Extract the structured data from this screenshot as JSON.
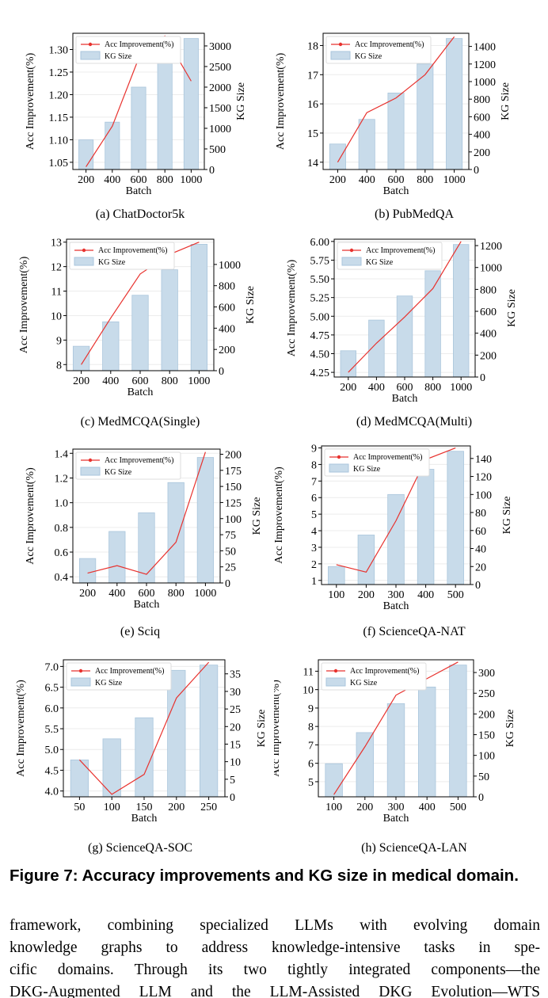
{
  "figure": {
    "caption": "Figure 7: Accuracy improvements and KG size in medical domain.",
    "body_lines": [
      "framework, combining specialized LLMs with evolving domain",
      "knowledge graphs to address knowledge-intensive tasks in spe-",
      "cific domains. Through its two tightly integrated components—the",
      "DKG-Augmented LLM and the LLM-Assisted DKG Evolution—WTS"
    ]
  },
  "colors": {
    "line": "#e8322e",
    "bar_fill": "#c8dbea",
    "bar_edge": "#aac6dc",
    "axis": "#000000"
  },
  "chart_data": [
    {
      "type": "bar+line",
      "subcaption": "(a) ChatDoctor5k",
      "xlabel": "Batch",
      "ylabel_left": "Acc Improvement(%)",
      "ylabel_right": "KG Size",
      "categories": [
        "200",
        "400",
        "600",
        "800",
        "1000"
      ],
      "line_values": [
        1.04,
        1.13,
        1.28,
        1.33,
        1.23
      ],
      "bar_values": [
        720,
        1150,
        2000,
        2580,
        3180
      ],
      "yleft_ticks": [
        "1.05",
        "1.10",
        "1.15",
        "1.20",
        "1.25",
        "1.30"
      ],
      "yright_ticks": [
        "0",
        "500",
        "1000",
        "1500",
        "2000",
        "2500",
        "3000"
      ],
      "series_names": [
        "Acc Improvement(%)",
        "KG Size"
      ],
      "legend": "top-left",
      "grid": "y"
    },
    {
      "type": "bar+line",
      "subcaption": "(b) PubMedQA",
      "xlabel": "Batch",
      "ylabel_left": "Acc Improvement(%)",
      "ylabel_right": "KG Size",
      "categories": [
        "200",
        "400",
        "600",
        "800",
        "1000"
      ],
      "line_values": [
        14.0,
        15.7,
        16.2,
        17.0,
        18.3
      ],
      "bar_values": [
        290,
        570,
        870,
        1200,
        1490
      ],
      "yleft_ticks": [
        "14",
        "15",
        "16",
        "17",
        "18"
      ],
      "yright_ticks": [
        "0",
        "200",
        "400",
        "600",
        "800",
        "1000",
        "1200",
        "1400"
      ],
      "series_names": [
        "Acc Improvement(%)",
        "KG Size"
      ],
      "legend": "top-left",
      "grid": "y"
    },
    {
      "type": "bar+line",
      "subcaption": "(c) MedMCQA(Single)",
      "xlabel": "Batch",
      "ylabel_left": "Acc Improvement(%)",
      "ylabel_right": "KG Size",
      "categories": [
        "200",
        "400",
        "600",
        "800",
        "1000"
      ],
      "line_values": [
        8.0,
        9.9,
        11.7,
        12.5,
        13.0
      ],
      "bar_values": [
        230,
        460,
        710,
        950,
        1190
      ],
      "yleft_ticks": [
        "8",
        "9",
        "10",
        "11",
        "12",
        "13"
      ],
      "yright_ticks": [
        "0",
        "200",
        "400",
        "600",
        "800",
        "1000"
      ],
      "series_names": [
        "Acc Improvement(%)",
        "KG Size"
      ],
      "legend": "top-left",
      "grid": "y"
    },
    {
      "type": "bar+line",
      "subcaption": "(d) MedMCQA(Multi)",
      "xlabel": "Batch",
      "ylabel_left": "Acc Improvement(%)",
      "ylabel_right": "KG Size",
      "categories": [
        "200",
        "400",
        "600",
        "800",
        "1000"
      ],
      "line_values": [
        4.25,
        4.64,
        4.99,
        5.37,
        6.0
      ],
      "bar_values": [
        240,
        520,
        740,
        970,
        1210
      ],
      "yleft_ticks": [
        "4.25",
        "4.50",
        "4.75",
        "5.00",
        "5.25",
        "5.50",
        "5.75",
        "6.00"
      ],
      "yright_ticks": [
        "0",
        "200",
        "400",
        "600",
        "800",
        "1000",
        "1200"
      ],
      "series_names": [
        "Acc Improvement(%)",
        "KG Size"
      ],
      "legend": "top-left",
      "grid": "y"
    },
    {
      "type": "bar+line",
      "subcaption": "(e) Sciq",
      "xlabel": "Batch",
      "ylabel_left": "Acc Improvement(%)",
      "ylabel_right": "KG Size",
      "categories": [
        "200",
        "400",
        "600",
        "800",
        "1000"
      ],
      "line_values": [
        0.43,
        0.49,
        0.42,
        0.68,
        1.41
      ],
      "bar_values": [
        38,
        80,
        109,
        156,
        195
      ],
      "yleft_ticks": [
        "0.4",
        "0.6",
        "0.8",
        "1.0",
        "1.2",
        "1.4"
      ],
      "yright_ticks": [
        "0",
        "25",
        "50",
        "75",
        "100",
        "125",
        "150",
        "175",
        "200"
      ],
      "series_names": [
        "Acc Improvement(%)",
        "KG Size"
      ],
      "legend": "top-left",
      "grid": "y"
    },
    {
      "type": "bar+line",
      "subcaption": "(f) ScienceQA-NAT",
      "xlabel": "Batch",
      "ylabel_left": "Acc Improvement(%)",
      "ylabel_right": "KG Size",
      "categories": [
        "100",
        "200",
        "300",
        "400",
        "500"
      ],
      "line_values": [
        1.95,
        1.5,
        4.6,
        8.3,
        9.0
      ],
      "bar_values": [
        20,
        55,
        100,
        128,
        148
      ],
      "yleft_ticks": [
        "1",
        "2",
        "3",
        "4",
        "5",
        "6",
        "7",
        "8",
        "9"
      ],
      "yright_ticks": [
        "0",
        "20",
        "40",
        "60",
        "80",
        "100",
        "120",
        "140"
      ],
      "series_names": [
        "Acc Improvement(%)",
        "KG Size"
      ],
      "legend": "top-left",
      "grid": "y"
    },
    {
      "type": "bar+line",
      "subcaption": "(g) ScienceQA-SOC",
      "xlabel": "Batch",
      "ylabel_left": "Acc Improvement(%)",
      "ylabel_right": "KG Size",
      "categories": [
        "50",
        "100",
        "150",
        "200",
        "250"
      ],
      "line_values": [
        4.75,
        3.92,
        4.4,
        6.24,
        7.1
      ],
      "bar_values": [
        10.5,
        16.5,
        22.5,
        36,
        37.5
      ],
      "yleft_ticks": [
        "4.0",
        "4.5",
        "5.0",
        "5.5",
        "6.0",
        "6.5",
        "7.0"
      ],
      "yright_ticks": [
        "0",
        "5",
        "10",
        "15",
        "20",
        "25",
        "30",
        "35"
      ],
      "series_names": [
        "Acc Improvement(%)",
        "KG Size"
      ],
      "legend": "top-left",
      "grid": "y"
    },
    {
      "type": "bar+line",
      "subcaption": "(h) ScienceQA-LAN",
      "xlabel": "Batch",
      "ylabel_left": "Acc Improvement(%)",
      "ylabel_right": "KG Size",
      "categories": [
        "100",
        "200",
        "300",
        "400",
        "500"
      ],
      "line_values": [
        4.3,
        6.9,
        9.7,
        10.6,
        11.5
      ],
      "bar_values": [
        80,
        155,
        225,
        265,
        318
      ],
      "yleft_ticks": [
        "5",
        "6",
        "7",
        "8",
        "9",
        "10",
        "11"
      ],
      "yright_ticks": [
        "0",
        "50",
        "100",
        "150",
        "200",
        "250",
        "300"
      ],
      "series_names": [
        "Acc Improvement(%)",
        "KG Size"
      ],
      "legend": "top-left",
      "grid": "y"
    }
  ]
}
